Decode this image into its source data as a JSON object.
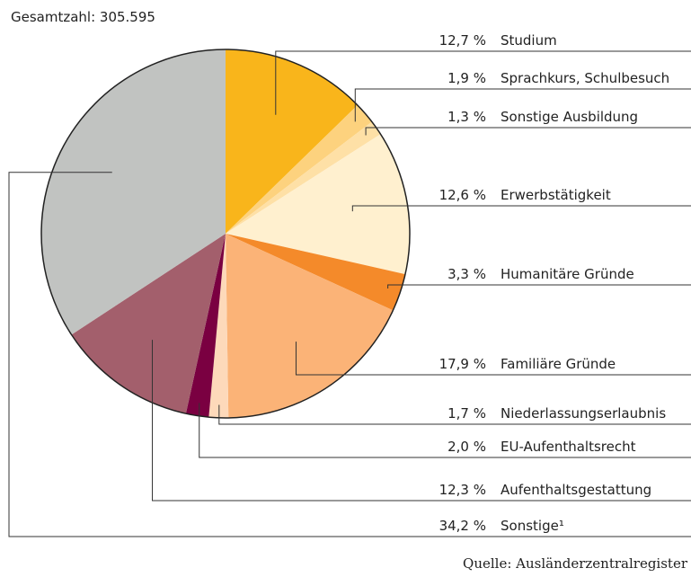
{
  "chart_data": {
    "type": "pie",
    "title": "Gesamtzahl: 305.595",
    "source": "Quelle: Ausländerzentralregister",
    "categories": [
      "Studium",
      "Sprachkurs, Schulbesuch",
      "Sonstige Ausbildung",
      "Erwerbstätigkeit",
      "Humanitäre Gründe",
      "Familiäre Gründe",
      "Niederlassungserlaubnis",
      "EU-Aufenthaltsrecht",
      "Aufenthaltsgestattung",
      "Sonstige¹"
    ],
    "values": [
      12.7,
      1.9,
      1.3,
      12.6,
      3.3,
      17.9,
      1.7,
      2.0,
      12.3,
      34.2
    ],
    "value_labels": [
      "12,7 %",
      "1,9 %",
      "1,3 %",
      "12,6 %",
      "3,3 %",
      "17,9 %",
      "1,7 %",
      "2,0 %",
      "12,3 %",
      "34,2 %"
    ],
    "colors": [
      "#f9b51b",
      "#fdd27e",
      "#fee0a6",
      "#fff0cf",
      "#f48a2a",
      "#fbb377",
      "#fdd9ba",
      "#7a0041",
      "#a35f6c",
      "#c1c3c1"
    ]
  }
}
